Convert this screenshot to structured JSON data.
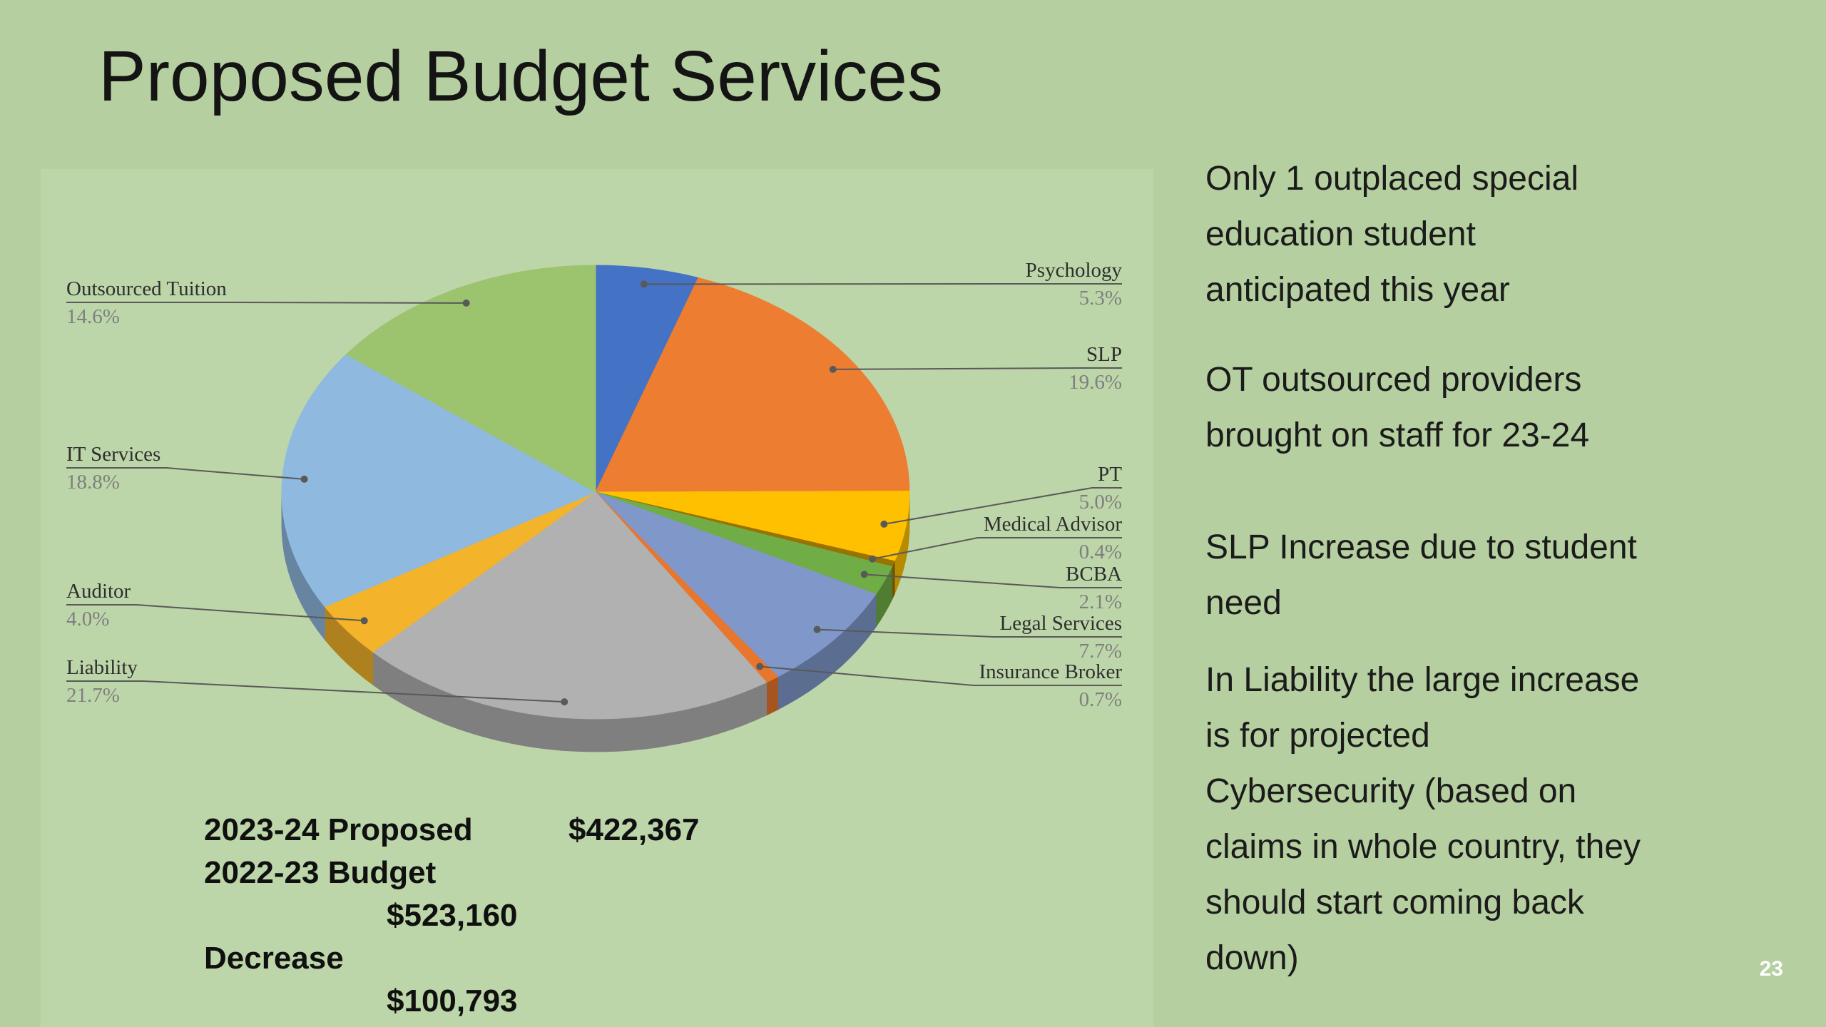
{
  "title": "Proposed Budget Services",
  "page_number": "23",
  "colors": {
    "slide_background": "#b5cfa0",
    "chart_panel": "#bdd6a9",
    "leader_line": "#595959",
    "label_name": "#2e2e2e",
    "label_pct": "#7f7f7f",
    "body_text": "#1b1b1b",
    "page_number_text": "#ffffff"
  },
  "chart_data": {
    "type": "pie",
    "style": "3d",
    "title": "",
    "legend_position": "none",
    "label_style": "outside callouts with leader lines, category name over percentage",
    "slices": [
      {
        "label": "Psychology",
        "value": 5.3,
        "pct_label": "5.3%",
        "color": "#4472C4"
      },
      {
        "label": "SLP",
        "value": 19.6,
        "pct_label": "19.6%",
        "color": "#ED7D31"
      },
      {
        "label": "PT",
        "value": 5.0,
        "pct_label": "5.0%",
        "color": "#FFC000"
      },
      {
        "label": "Medical Advisor",
        "value": 0.4,
        "pct_label": "0.4%",
        "color": "#997300"
      },
      {
        "label": "BCBA",
        "value": 2.1,
        "pct_label": "2.1%",
        "color": "#70AD47"
      },
      {
        "label": "Legal Services",
        "value": 7.7,
        "pct_label": "7.7%",
        "color": "#7F97C9"
      },
      {
        "label": "Insurance Broker",
        "value": 0.7,
        "pct_label": "0.7%",
        "color": "#E8762C"
      },
      {
        "label": "Liability",
        "value": 21.7,
        "pct_label": "21.7%",
        "color": "#B1B1B1"
      },
      {
        "label": "Auditor",
        "value": 4.0,
        "pct_label": "4.0%",
        "color": "#F3B32A"
      },
      {
        "label": "IT Services",
        "value": 18.8,
        "pct_label": "18.8%",
        "color": "#8FB9DF"
      },
      {
        "label": "Outsourced Tuition",
        "value": 14.6,
        "pct_label": "14.6%",
        "color": "#9CC36E"
      }
    ]
  },
  "budget_summary": {
    "rows": [
      {
        "label": "2023-24 Proposed",
        "amount": "$422,367"
      },
      {
        "label": "2022-23 Budget",
        "amount": "$523,160"
      },
      {
        "label": "Decrease",
        "amount": "$100,793"
      }
    ]
  },
  "notes": {
    "paragraphs": [
      [
        "Only 1 outplaced special",
        "education student",
        "anticipated this year"
      ],
      [
        "OT outsourced providers",
        "brought on staff for 23-24"
      ],
      [
        "SLP Increase due to student",
        "need"
      ],
      [
        "In Liability the large increase",
        "is for projected",
        "Cybersecurity (based on",
        "claims in whole country, they",
        "should start coming back",
        "down)"
      ]
    ]
  }
}
